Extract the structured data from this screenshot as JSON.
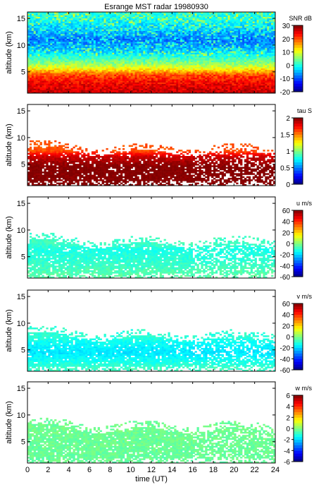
{
  "title": "Esrange MST radar 19980930",
  "chart_data": [
    {
      "type": "heatmap",
      "parameter": "SNR",
      "colorbar_label": "SNR dB",
      "ylabel": "altitude (km)",
      "xlim": [
        0,
        24
      ],
      "ylim": [
        1.0,
        16.2
      ],
      "yticks": [
        5,
        10,
        15
      ],
      "clim": [
        -20,
        30
      ],
      "cticks": [
        -20,
        -10,
        0,
        10,
        20,
        30
      ],
      "colormap": "jet",
      "coverage": "full",
      "profile": [
        {
          "altitude": 1.5,
          "value": 26
        },
        {
          "altitude": 3.0,
          "value": 24
        },
        {
          "altitude": 4.5,
          "value": 20
        },
        {
          "altitude": 5.5,
          "value": 12
        },
        {
          "altitude": 6.5,
          "value": 6
        },
        {
          "altitude": 7.5,
          "value": 2
        },
        {
          "altitude": 9.0,
          "value": -4
        },
        {
          "altitude": 11.0,
          "value": -8
        },
        {
          "altitude": 13.0,
          "value": -4
        },
        {
          "altitude": 14.5,
          "value": -1
        },
        {
          "altitude": 16.0,
          "value": 0
        }
      ]
    },
    {
      "type": "heatmap",
      "parameter": "tau",
      "colorbar_label": "tau S",
      "ylabel": "altitude (km)",
      "xlim": [
        0,
        24
      ],
      "ylim": [
        1.0,
        16.2
      ],
      "yticks": [
        5,
        10,
        15
      ],
      "clim": [
        0,
        2
      ],
      "cticks": [
        0,
        0.5,
        1,
        1.5,
        2
      ],
      "colormap": "jet",
      "coverage": "sparse",
      "profile": [
        {
          "altitude": 1.5,
          "value": 2.0
        },
        {
          "altitude": 4.5,
          "value": 2.0
        },
        {
          "altitude": 6.5,
          "value": 1.85
        },
        {
          "altitude": 7.5,
          "value": 1.6
        }
      ]
    },
    {
      "type": "heatmap",
      "parameter": "u",
      "colorbar_label": "u m/s",
      "ylabel": "altitude (km)",
      "xlim": [
        0,
        24
      ],
      "ylim": [
        1.0,
        16.2
      ],
      "yticks": [
        5,
        10,
        15
      ],
      "clim": [
        -60,
        60
      ],
      "cticks": [
        -60,
        -40,
        -20,
        0,
        20,
        40,
        60
      ],
      "colormap": "jet",
      "coverage": "sparse",
      "profile": [
        {
          "altitude": 1.5,
          "value": -5
        },
        {
          "altitude": 4.5,
          "value": -10
        },
        {
          "altitude": 6.5,
          "value": -12
        },
        {
          "altitude": 7.5,
          "value": -8
        }
      ]
    },
    {
      "type": "heatmap",
      "parameter": "v",
      "colorbar_label": "v m/s",
      "ylabel": "altitude (km)",
      "xlim": [
        0,
        24
      ],
      "ylim": [
        1.0,
        16.2
      ],
      "yticks": [
        5,
        10,
        15
      ],
      "clim": [
        -60,
        60
      ],
      "cticks": [
        -60,
        -40,
        -20,
        0,
        20,
        40,
        60
      ],
      "colormap": "jet",
      "coverage": "sparse",
      "profile": [
        {
          "altitude": 1.5,
          "value": -8
        },
        {
          "altitude": 4.5,
          "value": -18
        },
        {
          "altitude": 6.5,
          "value": -14
        },
        {
          "altitude": 7.5,
          "value": -10
        }
      ]
    },
    {
      "type": "heatmap",
      "parameter": "w",
      "colorbar_label": "w m/s",
      "ylabel": "altitude (km)",
      "xlabel": "time (UT)",
      "xlim": [
        0,
        24
      ],
      "ylim": [
        1.0,
        16.2
      ],
      "yticks": [
        5,
        10,
        15
      ],
      "xticks": [
        0,
        2,
        4,
        6,
        8,
        10,
        12,
        14,
        16,
        18,
        20,
        22,
        24
      ],
      "clim": [
        -6,
        6
      ],
      "cticks": [
        -6,
        -4,
        -2,
        0,
        2,
        4,
        6
      ],
      "colormap": "jet",
      "coverage": "sparse",
      "profile": [
        {
          "altitude": 1.5,
          "value": -0.3
        },
        {
          "altitude": 7.5,
          "value": -0.2
        }
      ]
    }
  ]
}
